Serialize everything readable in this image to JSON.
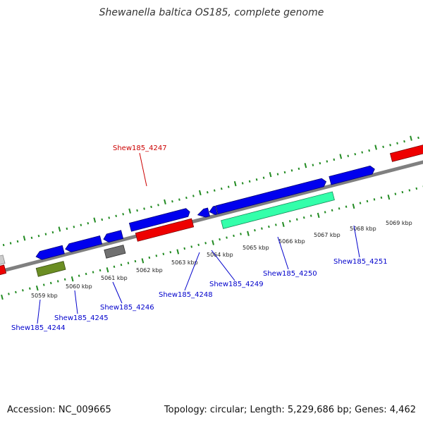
{
  "title": "Shewanella baltica OS185, complete genome",
  "footer": {
    "accession": "Accession: NC_009665",
    "topology": "Topology: circular; Length: 5,229,686 bp; Genes: 4,462"
  },
  "colors": {
    "backbone": "#808080",
    "tick": "#228b22",
    "gene_blue": "#0000ee",
    "gene_red": "#ee0000",
    "gene_cyan": "#33ffaa",
    "gene_olive": "#6b8e23",
    "gene_gray": "#707070",
    "label_blue": "#0000cc",
    "label_red": "#cc0000"
  },
  "scale_labels": [
    "5059 kbp",
    "5060 kbp",
    "5061 kbp",
    "5062 kbp",
    "5063 kbp",
    "5064 kbp",
    "5065 kbp",
    "5066 kbp",
    "5067 kbp",
    "5068 kbp",
    "5069 kbp"
  ],
  "gene_labels": [
    {
      "id": "g4247",
      "text": "Shew185_4247",
      "color": "red"
    },
    {
      "id": "g4244",
      "text": "Shew185_4244",
      "color": "blue"
    },
    {
      "id": "g4245",
      "text": "Shew185_4245",
      "color": "blue"
    },
    {
      "id": "g4246",
      "text": "Shew185_4246",
      "color": "blue"
    },
    {
      "id": "g4248",
      "text": "Shew185_4248",
      "color": "blue"
    },
    {
      "id": "g4249",
      "text": "Shew185_4249",
      "color": "blue"
    },
    {
      "id": "g4250",
      "text": "Shew185_4250",
      "color": "blue"
    },
    {
      "id": "g4251",
      "text": "Shew185_4251",
      "color": "blue"
    }
  ]
}
